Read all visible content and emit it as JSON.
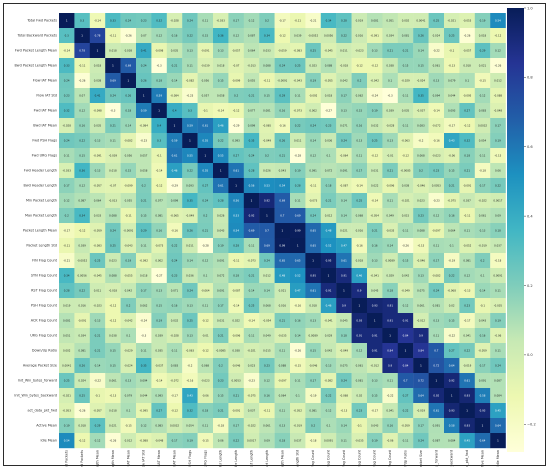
{
  "chart_data": {
    "type": "heatmap",
    "title": "",
    "variables": [
      "Total Fwd Packets",
      "Total Backward Packets",
      "Fwd Packet Length Mean",
      "Bwd Packet Length Mean",
      "Flow IAT Mean",
      "Flow IAT Std",
      "Fwd IAT Mean",
      "Bwd IAT Mean",
      "Fwd PSH Flags",
      "Fwd URG Flags",
      "Fwd Header Length",
      "Bwd Header Length",
      "Min Packet Length",
      "Max Packet Length",
      "Packet Length Mean",
      "Packet Length Std",
      "FIN Flag Count",
      "SYN Flag Count",
      "RST Flag Count",
      "PSH Flag Count",
      "ACK Flag Count",
      "URG Flag Count",
      "Down/Up Ratio",
      "Average Packet Size",
      "Init_Win_bytes_forward",
      "Init_Win_bytes_backward",
      "act_data_pkt_fwd",
      "Active Mean",
      "Idle Mean"
    ],
    "colorbar_ticks": [
      1.0,
      0.8,
      0.6,
      0.4,
      0.2,
      0.0,
      -0.2
    ],
    "colormap": [
      "#ffffd9",
      "#edf8b1",
      "#c7e9b4",
      "#7fcdbb",
      "#41b6c4",
      "#1d91c0",
      "#225ea8",
      "#253494",
      "#081d58"
    ],
    "vmin": -0.28,
    "vmax": 1.0,
    "matrix": [
      [
        1.0,
        0.3,
        -0.14,
        0.33,
        0.24,
        0.23,
        0.32,
        -0.028,
        0.24,
        0.11,
        -0.033,
        0.17,
        0.12,
        0.2,
        -0.17,
        -0.11,
        -0.21,
        0.34,
        0.28,
        0.019,
        0.081,
        0.051,
        0.002,
        0.0041,
        0.25,
        -0.021,
        -0.053,
        0.19,
        0.54
      ],
      [
        0.3,
        1.0,
        0.78,
        -0.11,
        -0.26,
        0.07,
        0.12,
        0.16,
        0.22,
        0.15,
        0.36,
        0.12,
        0.087,
        0.34,
        -0.12,
        0.039,
        -0.0052,
        0.0056,
        0.22,
        0.016,
        -0.091,
        0.034,
        0.081,
        0.26,
        0.024,
        0.25,
        -0.26,
        0.018,
        -0.12
      ],
      [
        -0.14,
        0.78,
        1.0,
        0.018,
        0.038,
        0.41,
        -0.098,
        0.035,
        0.13,
        -0.091,
        0.13,
        -0.057,
        0.064,
        0.033,
        -0.059,
        -0.083,
        0.25,
        -0.045,
        0.011,
        -0.023,
        0.13,
        0.21,
        0.21,
        0.14,
        -0.22,
        -0.1,
        -0.057,
        0.29,
        0.12
      ],
      [
        0.33,
        -0.11,
        0.018,
        1.0,
        0.69,
        0.24,
        -0.3,
        0.21,
        0.11,
        -0.039,
        0.018,
        -0.07,
        -0.013,
        0.088,
        0.24,
        0.25,
        0.023,
        0.088,
        -0.018,
        -0.12,
        -0.12,
        0.038,
        0.15,
        0.15,
        0.061,
        -0.13,
        0.018,
        0.021,
        -0.26
      ],
      [
        0.24,
        -0.26,
        0.038,
        0.69,
        1.0,
        0.26,
        0.18,
        0.14,
        -0.082,
        0.056,
        0.15,
        -0.099,
        0.055,
        -0.11,
        -0.0091,
        -0.043,
        0.19,
        -0.055,
        0.042,
        0.2,
        -0.042,
        0.1,
        -0.029,
        -0.024,
        0.13,
        0.079,
        0.1,
        -0.15,
        0.012
      ],
      [
        0.23,
        0.07,
        0.41,
        0.24,
        0.26,
        1.0,
        0.59,
        -0.084,
        -0.23,
        0.057,
        0.058,
        0.2,
        0.21,
        0.15,
        0.29,
        0.11,
        -0.092,
        0.018,
        0.17,
        0.062,
        -0.24,
        -0.3,
        0.11,
        0.35,
        0.094,
        0.044,
        -0.095,
        0.12,
        -0.088
      ],
      [
        0.32,
        0.12,
        -0.098,
        -0.3,
        0.18,
        0.59,
        1.0,
        0.4,
        0.3,
        -0.1,
        -0.14,
        -0.12,
        0.077,
        0.081,
        0.16,
        -0.073,
        0.002,
        -0.27,
        0.13,
        0.15,
        0.19,
        0.039,
        0.035,
        -0.037,
        -0.14,
        0.093,
        0.27,
        0.083,
        -0.048
      ],
      [
        -0.028,
        0.16,
        0.035,
        0.21,
        0.14,
        -0.084,
        0.4,
        1.0,
        0.59,
        0.61,
        0.46,
        -0.29,
        0.099,
        -0.065,
        -0.16,
        0.22,
        0.24,
        0.23,
        0.071,
        0.16,
        0.032,
        -0.028,
        0.11,
        0.083,
        -0.072,
        -0.17,
        -0.12,
        0.0032,
        0.17
      ],
      [
        0.24,
        0.22,
        0.13,
        0.11,
        -0.082,
        -0.23,
        0.3,
        0.59,
        1.0,
        0.55,
        0.22,
        0.093,
        0.35,
        -0.049,
        0.26,
        0.011,
        0.14,
        0.036,
        0.24,
        0.13,
        0.25,
        0.13,
        -0.063,
        -0.2,
        -0.16,
        0.43,
        0.32,
        0.054,
        0.19
      ],
      [
        0.11,
        0.15,
        -0.091,
        -0.039,
        0.056,
        0.057,
        -0.1,
        0.61,
        0.55,
        1.0,
        0.55,
        0.27,
        0.24,
        0.2,
        0.21,
        -0.28,
        0.12,
        0.1,
        -0.064,
        0.11,
        -0.12,
        -0.01,
        -0.12,
        0.068,
        -0.023,
        -0.06,
        0.18,
        0.11,
        -0.15
      ],
      [
        -0.033,
        0.36,
        0.13,
        0.018,
        0.15,
        0.058,
        -0.14,
        0.46,
        0.22,
        0.55,
        1.0,
        0.61,
        0.28,
        0.026,
        0.043,
        0.19,
        0.091,
        0.072,
        0.091,
        0.17,
        0.031,
        0.21,
        -0.0085,
        0.2,
        0.23,
        0.15,
        0.21,
        -0.18,
        0.06
      ],
      [
        0.17,
        0.12,
        -0.057,
        -0.07,
        -0.099,
        0.2,
        -0.12,
        -0.29,
        0.093,
        0.27,
        0.61,
        1.0,
        0.56,
        0.53,
        0.54,
        0.28,
        -0.11,
        0.18,
        -0.087,
        -0.14,
        0.022,
        -0.096,
        0.038,
        -0.046,
        0.0053,
        0.21,
        -0.091,
        0.17,
        0.22
      ],
      [
        0.12,
        0.087,
        0.064,
        -0.013,
        0.055,
        0.21,
        0.077,
        0.099,
        0.35,
        0.24,
        0.28,
        0.56,
        1.0,
        0.92,
        0.69,
        0.11,
        -0.073,
        0.21,
        0.14,
        0.25,
        -0.14,
        0.11,
        -0.021,
        0.023,
        -0.23,
        -0.075,
        0.037,
        -0.022,
        0.0017
      ],
      [
        0.2,
        0.34,
        0.033,
        0.088,
        -0.11,
        0.15,
        0.081,
        -0.065,
        -0.049,
        0.2,
        0.026,
        0.53,
        0.92,
        1.0,
        0.7,
        0.69,
        0.24,
        0.012,
        0.14,
        0.068,
        -0.054,
        0.049,
        0.015,
        0.23,
        0.12,
        0.16,
        -0.11,
        0.061,
        0.09
      ],
      [
        -0.17,
        -0.12,
        -0.059,
        0.24,
        -0.0091,
        0.29,
        0.16,
        -0.16,
        0.26,
        0.21,
        0.043,
        0.54,
        0.69,
        0.7,
        1.0,
        0.99,
        0.65,
        0.48,
        0.021,
        0.016,
        0.21,
        -0.035,
        0.11,
        0.088,
        -0.097,
        0.064,
        0.11,
        0.13,
        0.18
      ],
      [
        -0.11,
        0.039,
        -0.083,
        0.25,
        -0.043,
        0.11,
        -0.073,
        0.22,
        0.011,
        -0.28,
        0.19,
        0.28,
        0.11,
        0.69,
        0.99,
        1.0,
        0.65,
        0.52,
        0.47,
        -0.16,
        0.16,
        0.14,
        -0.26,
        -0.15,
        0.11,
        0.1,
        -0.052,
        -0.019,
        0.037
      ],
      [
        -0.21,
        -0.0052,
        0.25,
        0.023,
        0.19,
        -0.092,
        0.002,
        0.24,
        0.14,
        0.12,
        0.091,
        -0.11,
        -0.073,
        0.24,
        0.65,
        0.65,
        1.0,
        0.95,
        0.61,
        0.018,
        0.13,
        0.0089,
        0.15,
        -0.046,
        0.17,
        -0.19,
        0.081,
        0.2,
        -0.18
      ],
      [
        0.34,
        0.0056,
        -0.045,
        0.088,
        -0.055,
        0.018,
        -0.27,
        0.23,
        0.036,
        0.1,
        0.072,
        0.18,
        0.21,
        0.012,
        0.48,
        0.52,
        0.95,
        1.0,
        0.91,
        0.46,
        -0.041,
        0.029,
        0.042,
        0.13,
        -0.082,
        0.22,
        0.12,
        0.1,
        0.0091
      ],
      [
        0.28,
        0.22,
        0.011,
        -0.018,
        0.042,
        0.17,
        0.13,
        0.071,
        0.24,
        -0.064,
        0.091,
        -0.087,
        0.14,
        0.14,
        0.021,
        0.47,
        0.61,
        0.91,
        1.0,
        0.9,
        0.045,
        0.18,
        -0.049,
        0.075,
        0.24,
        -0.068,
        -0.13,
        0.14,
        0.11
      ],
      [
        0.019,
        0.016,
        -0.023,
        -0.12,
        0.2,
        0.062,
        0.15,
        0.16,
        0.13,
        0.11,
        0.17,
        -0.14,
        0.25,
        0.068,
        0.016,
        -0.16,
        0.018,
        0.46,
        0.9,
        1.0,
        0.93,
        0.91,
        0.12,
        0.061,
        0.081,
        0.02,
        0.23,
        -0.1,
        -0.035
      ],
      [
        0.081,
        -0.091,
        0.13,
        -0.12,
        -0.042,
        -0.24,
        0.19,
        0.032,
        0.25,
        -0.12,
        0.031,
        0.022,
        -0.14,
        -0.054,
        0.21,
        0.16,
        0.13,
        -0.041,
        0.045,
        0.93,
        1.0,
        0.91,
        0.91,
        -0.012,
        0.13,
        0.15,
        -0.17,
        0.043,
        0.19
      ],
      [
        0.051,
        0.034,
        0.21,
        0.038,
        0.1,
        -0.3,
        0.039,
        -0.028,
        0.13,
        -0.01,
        0.21,
        -0.096,
        0.11,
        0.049,
        -0.035,
        0.14,
        0.0089,
        0.029,
        0.18,
        0.91,
        0.91,
        1.0,
        0.84,
        0.9,
        0.11,
        -0.22,
        0.041,
        0.16,
        -0.06
      ],
      [
        0.002,
        0.081,
        0.21,
        0.15,
        -0.029,
        0.11,
        0.035,
        0.11,
        -0.063,
        -0.12,
        -0.0085,
        0.038,
        -0.021,
        0.015,
        0.11,
        -0.26,
        0.15,
        0.042,
        -0.049,
        0.12,
        0.91,
        0.84,
        1.0,
        0.84,
        0.7,
        0.27,
        0.22,
        -0.059,
        0.11
      ],
      [
        0.0041,
        0.26,
        0.14,
        0.15,
        -0.024,
        0.35,
        -0.037,
        0.083,
        -0.2,
        0.068,
        0.2,
        -0.046,
        0.023,
        0.23,
        0.088,
        -0.15,
        -0.046,
        0.13,
        0.075,
        0.061,
        -0.012,
        0.9,
        0.84,
        1.0,
        0.72,
        0.64,
        -0.019,
        0.17,
        0.24
      ],
      [
        0.25,
        0.024,
        -0.22,
        0.061,
        0.13,
        0.094,
        -0.14,
        -0.072,
        -0.16,
        -0.023,
        0.23,
        0.0053,
        -0.23,
        0.12,
        -0.097,
        0.11,
        0.17,
        -0.082,
        0.24,
        0.081,
        0.13,
        0.11,
        0.7,
        0.72,
        1.0,
        0.92,
        0.61,
        0.091,
        0.087
      ],
      [
        -0.021,
        0.25,
        -0.1,
        -0.13,
        0.079,
        0.044,
        0.093,
        -0.17,
        0.43,
        -0.06,
        0.15,
        0.21,
        -0.075,
        0.16,
        0.064,
        0.1,
        -0.19,
        0.22,
        -0.068,
        0.02,
        0.15,
        -0.22,
        0.27,
        0.64,
        0.92,
        1.0,
        0.93,
        0.58,
        0.084
      ],
      [
        -0.053,
        -0.26,
        -0.057,
        0.018,
        0.1,
        -0.095,
        0.27,
        -0.12,
        0.32,
        0.18,
        0.21,
        -0.091,
        0.037,
        -0.11,
        0.11,
        -0.052,
        0.081,
        0.12,
        -0.13,
        0.23,
        -0.17,
        0.041,
        0.22,
        -0.019,
        0.61,
        0.93,
        1.0,
        0.93,
        0.45
      ],
      [
        0.19,
        0.018,
        0.29,
        0.021,
        -0.15,
        0.12,
        0.083,
        0.0032,
        0.054,
        0.11,
        -0.18,
        0.17,
        -0.022,
        0.061,
        0.13,
        -0.019,
        0.2,
        0.1,
        0.14,
        -0.1,
        0.043,
        0.16,
        -0.059,
        0.17,
        0.091,
        0.58,
        0.93,
        1.0,
        0.64
      ],
      [
        0.54,
        -0.12,
        0.12,
        -0.26,
        0.012,
        -0.088,
        -0.048,
        0.17,
        0.19,
        -0.15,
        0.06,
        0.22,
        0.0017,
        0.09,
        0.18,
        0.037,
        -0.18,
        0.0091,
        0.11,
        -0.035,
        0.19,
        -0.06,
        0.11,
        0.24,
        0.087,
        0.084,
        0.45,
        0.64,
        1.0
      ]
    ]
  }
}
